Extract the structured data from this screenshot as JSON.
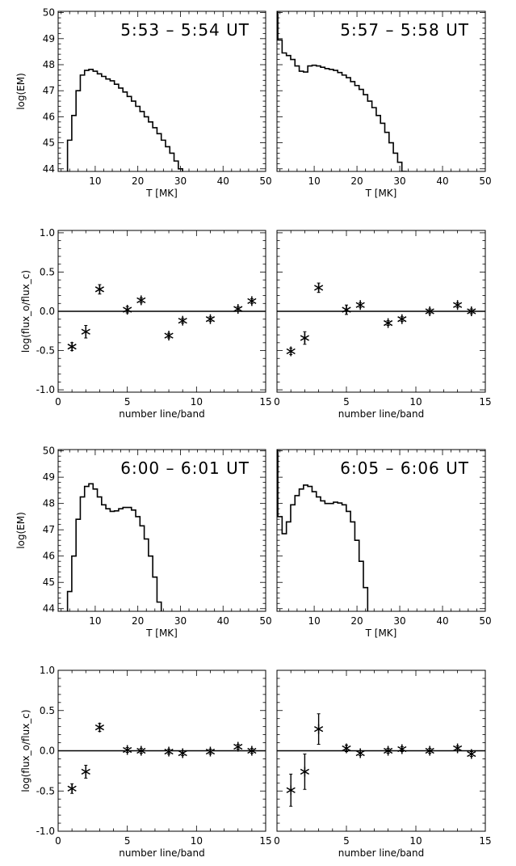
{
  "chart_data": [
    {
      "type": "line",
      "panel": "em-1",
      "title": "5:53  –  5:54  UT",
      "xlabel": "T [MK]",
      "ylabel": "log(EM)",
      "xlim": [
        1.3,
        50
      ],
      "ylim": [
        43.9,
        50.05
      ],
      "xticks": [
        10,
        20,
        30,
        40,
        50
      ],
      "yticks": [
        44,
        45,
        46,
        47,
        48,
        49,
        50
      ],
      "show_ylabels": true,
      "step": true,
      "x": [
        4,
        5,
        6,
        7,
        8,
        9,
        10,
        11,
        12,
        13,
        14,
        15,
        16,
        17,
        18,
        19,
        20,
        21,
        22,
        23,
        24,
        25,
        26,
        27,
        28,
        29,
        30
      ],
      "y": [
        45.1,
        46.05,
        47.0,
        47.6,
        47.78,
        47.82,
        47.75,
        47.65,
        47.55,
        47.45,
        47.38,
        47.25,
        47.1,
        46.95,
        46.78,
        46.6,
        46.4,
        46.2,
        46.0,
        45.8,
        45.58,
        45.35,
        45.1,
        44.85,
        44.6,
        44.3,
        44.0
      ]
    },
    {
      "type": "line",
      "panel": "em-2",
      "title": "5:57  –  5:58  UT",
      "xlabel": "T [MK]",
      "ylabel": "",
      "xlim": [
        1.3,
        50
      ],
      "ylim": [
        43.9,
        50.05
      ],
      "xticks": [
        10,
        20,
        30,
        40,
        50
      ],
      "yticks": [
        44,
        45,
        46,
        47,
        48,
        49,
        50
      ],
      "show_ylabels": false,
      "step": true,
      "x": [
        1,
        2,
        3,
        4,
        5,
        6,
        7,
        8,
        9,
        10,
        11,
        12,
        13,
        14,
        15,
        16,
        17,
        18,
        19,
        20,
        21,
        22,
        23,
        24,
        25,
        26,
        27,
        28,
        29,
        30,
        31
      ],
      "y": [
        50.5,
        48.95,
        48.45,
        48.35,
        48.2,
        47.95,
        47.75,
        47.72,
        47.95,
        47.98,
        47.95,
        47.9,
        47.85,
        47.82,
        47.78,
        47.7,
        47.6,
        47.5,
        47.35,
        47.2,
        47.05,
        46.85,
        46.6,
        46.35,
        46.05,
        45.75,
        45.4,
        45.0,
        44.6,
        44.25,
        43.9
      ]
    },
    {
      "type": "scatter",
      "panel": "flux-1",
      "xlabel": "number line/band",
      "ylabel": "log(flux_o/flux_c)",
      "xlim": [
        0,
        15
      ],
      "ylim": [
        -1.03,
        1.03
      ],
      "xticks": [
        0,
        5,
        10,
        15
      ],
      "yticks": [
        "-1.0",
        "-0.5",
        "0.0",
        "0.5",
        "1.0"
      ],
      "show_ylabels": true,
      "hline": 0,
      "x": [
        1,
        2,
        3,
        5,
        6,
        8,
        9,
        11,
        13,
        14
      ],
      "y": [
        -0.45,
        -0.26,
        0.28,
        0.02,
        0.14,
        -0.31,
        -0.12,
        -0.1,
        0.03,
        0.13
      ],
      "err": [
        0.05,
        0.08,
        0.06,
        0.04,
        0.03,
        0.03,
        0.03,
        0.03,
        0.03,
        0.03
      ]
    },
    {
      "type": "scatter",
      "panel": "flux-2",
      "xlabel": "number line/band",
      "ylabel": "",
      "xlim": [
        0,
        15
      ],
      "ylim": [
        -1.03,
        1.03
      ],
      "xticks": [
        0,
        5,
        10,
        15
      ],
      "yticks": [
        "-1.0",
        "-0.5",
        "0.0",
        "0.5",
        "1.0"
      ],
      "show_ylabels": false,
      "hline": 0,
      "x": [
        1,
        2,
        3,
        5,
        6,
        8,
        9,
        11,
        13,
        14
      ],
      "y": [
        -0.51,
        -0.34,
        0.3,
        0.02,
        0.08,
        -0.15,
        -0.1,
        0.0,
        0.08,
        0.0
      ],
      "err": [
        0.04,
        0.08,
        0.06,
        0.06,
        0.03,
        0.03,
        0.03,
        0.03,
        0.03,
        0.03
      ]
    },
    {
      "type": "line",
      "panel": "em-3",
      "title": "6:00  –  6:01  UT",
      "xlabel": "T [MK]",
      "ylabel": "log(EM)",
      "xlim": [
        1.3,
        50
      ],
      "ylim": [
        43.9,
        50.05
      ],
      "xticks": [
        10,
        20,
        30,
        40,
        50
      ],
      "yticks": [
        44,
        45,
        46,
        47,
        48,
        49,
        50
      ],
      "show_ylabels": true,
      "step": true,
      "x": [
        4,
        5,
        6,
        7,
        8,
        9,
        10,
        11,
        12,
        13,
        14,
        15,
        16,
        17,
        18,
        19,
        20,
        21,
        22,
        23,
        24,
        25
      ],
      "y": [
        44.65,
        46.0,
        47.4,
        48.25,
        48.65,
        48.75,
        48.55,
        48.25,
        47.95,
        47.8,
        47.7,
        47.72,
        47.8,
        47.85,
        47.85,
        47.75,
        47.5,
        47.15,
        46.65,
        46.0,
        45.2,
        44.25
      ]
    },
    {
      "type": "line",
      "panel": "em-4",
      "title": "6:05  –  6:06  UT",
      "xlabel": "T [MK]",
      "ylabel": "",
      "xlim": [
        1.3,
        50
      ],
      "ylim": [
        43.9,
        50.05
      ],
      "xticks": [
        10,
        20,
        30,
        40,
        50
      ],
      "yticks": [
        44,
        45,
        46,
        47,
        48,
        49,
        50
      ],
      "show_ylabels": false,
      "step": true,
      "x": [
        1,
        2,
        3,
        4,
        5,
        6,
        7,
        8,
        9,
        10,
        11,
        12,
        13,
        14,
        15,
        16,
        17,
        18,
        19,
        20,
        21,
        22
      ],
      "y": [
        50.5,
        47.5,
        46.85,
        47.3,
        47.95,
        48.3,
        48.55,
        48.7,
        48.65,
        48.45,
        48.25,
        48.1,
        48.0,
        48.0,
        48.05,
        48.02,
        47.95,
        47.7,
        47.3,
        46.6,
        45.8,
        44.8
      ]
    },
    {
      "type": "scatter",
      "panel": "flux-3",
      "xlabel": "number line/band",
      "ylabel": "log(flux_o/flux_c)",
      "xlim": [
        0,
        15
      ],
      "ylim": [
        -1.0,
        1.0
      ],
      "xticks": [
        0,
        5,
        10,
        15
      ],
      "yticks": [
        "-1.0",
        "-0.5",
        "0.0",
        "0.5",
        "1.0"
      ],
      "show_ylabels": true,
      "hline": 0,
      "x": [
        1,
        2,
        3,
        5,
        6,
        8,
        9,
        11,
        13,
        14
      ],
      "y": [
        -0.47,
        -0.26,
        0.29,
        0.01,
        0.0,
        -0.01,
        -0.03,
        -0.01,
        0.05,
        0.0
      ],
      "err": [
        0.06,
        0.08,
        0.05,
        0.03,
        0.03,
        0.03,
        0.03,
        0.03,
        0.03,
        0.03
      ]
    },
    {
      "type": "scatter",
      "panel": "flux-4",
      "xlabel": "number line/band",
      "ylabel": "",
      "xlim": [
        0,
        15
      ],
      "ylim": [
        -1.0,
        1.0
      ],
      "xticks": [
        0,
        5,
        10,
        15
      ],
      "yticks": [
        "-1.0",
        "-0.5",
        "0.0",
        "0.5",
        "1.0"
      ],
      "show_ylabels": false,
      "hline": 0,
      "x": [
        1,
        2,
        3,
        5,
        6,
        8,
        9,
        11,
        13,
        14
      ],
      "y": [
        -0.49,
        -0.26,
        0.27,
        0.03,
        -0.03,
        0.0,
        0.02,
        0.0,
        0.03,
        -0.04
      ],
      "err": [
        0.2,
        0.22,
        0.19,
        0.04,
        0.03,
        0.03,
        0.03,
        0.03,
        0.03,
        0.03
      ]
    }
  ]
}
